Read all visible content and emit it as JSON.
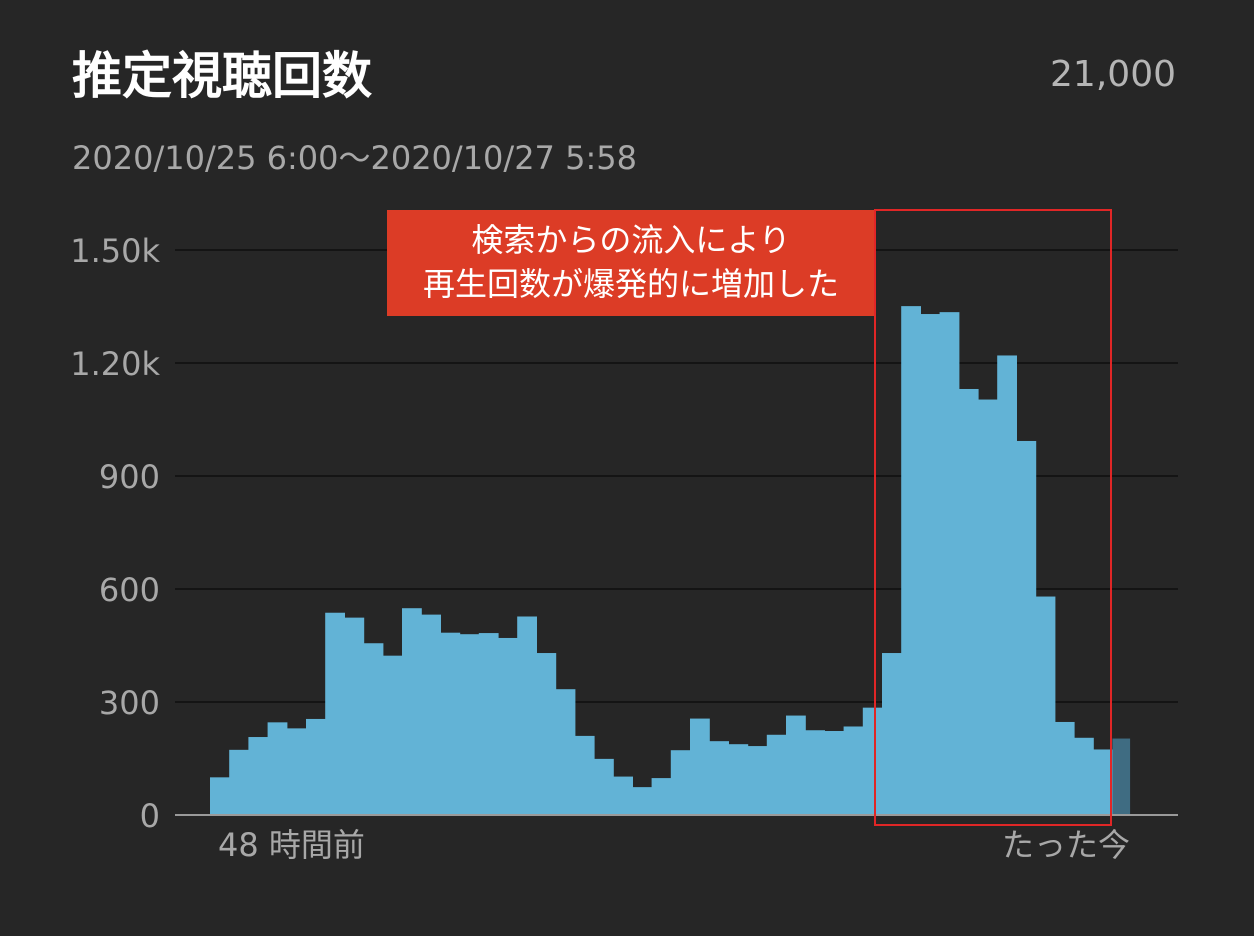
{
  "header": {
    "title": "推定視聴回数",
    "total": "21,000",
    "date_range": "2020/10/25 6:00〜2020/10/27 5:58"
  },
  "annotation": {
    "line1": "検索からの流入により",
    "line2": "再生回数が爆発的に増加した"
  },
  "colors": {
    "background": "#262626",
    "bar": "#62b3d6",
    "bar_current": "#3f6c82",
    "grid": "#141414",
    "axis": "#9a9a9a",
    "annotation": "#dc3c26",
    "highlight": "#e02626"
  },
  "chart_data": {
    "type": "bar",
    "title": "",
    "xlabel": "",
    "ylabel": "",
    "ylim": [
      0,
      1500
    ],
    "grid": true,
    "y_ticks": [
      {
        "value": 0,
        "label": "0"
      },
      {
        "value": 300,
        "label": "300"
      },
      {
        "value": 600,
        "label": "600"
      },
      {
        "value": 900,
        "label": "900"
      },
      {
        "value": 1200,
        "label": "1.20k"
      },
      {
        "value": 1500,
        "label": "1.50k"
      }
    ],
    "x_start_label": "48 時間前",
    "x_end_label": "たった今",
    "values": [
      100,
      173,
      207,
      246,
      230,
      255,
      537,
      524,
      456,
      423,
      549,
      532,
      484,
      480,
      483,
      470,
      527,
      430,
      334,
      210,
      149,
      102,
      74,
      98,
      172,
      256,
      196,
      188,
      183,
      213,
      264,
      225,
      223,
      235,
      285,
      430,
      1351,
      1330,
      1335,
      1131,
      1103,
      1220,
      993,
      580,
      247,
      205,
      174,
      203
    ],
    "current_index": 47
  }
}
